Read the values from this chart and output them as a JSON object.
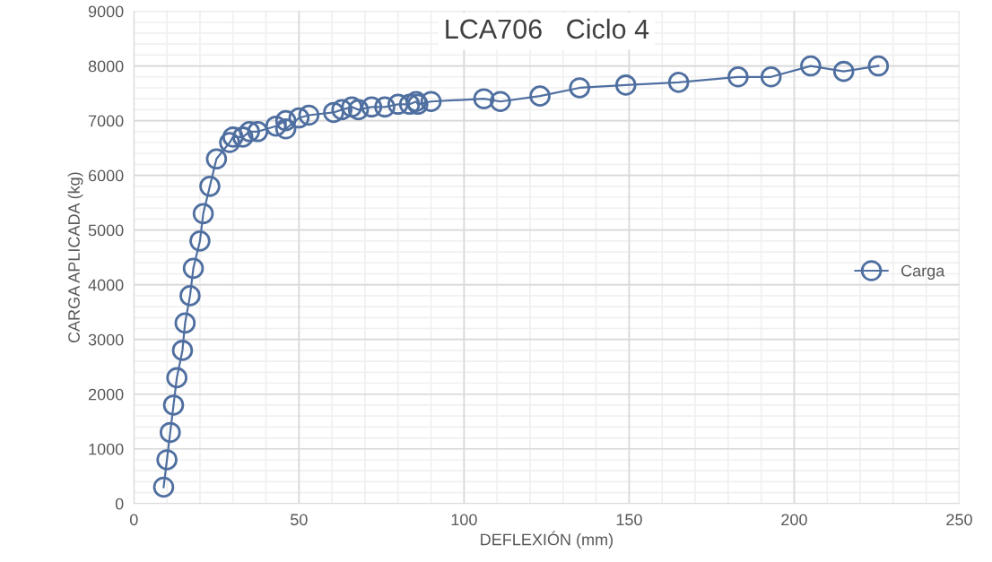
{
  "chart_data": {
    "type": "line",
    "title": "LCA706   Ciclo 4",
    "xlabel": "DEFLEXIÓN (mm)",
    "ylabel": "CARGA APLICADA (kg)",
    "xlim": [
      0,
      250
    ],
    "xticks": [
      0,
      50,
      100,
      150,
      200,
      250
    ],
    "ylim": [
      0,
      9000
    ],
    "yticks": [
      0,
      1000,
      2000,
      3000,
      4000,
      5000,
      6000,
      7000,
      8000,
      9000
    ],
    "grid": true,
    "legend": "right",
    "marker": "circle",
    "line_style": "solid",
    "series": [
      {
        "name": "Carga",
        "color": "#4f6fa0",
        "x": [
          9,
          10,
          11,
          12,
          13,
          14.7,
          15.5,
          17,
          18,
          20,
          21,
          23,
          25,
          29,
          30,
          33,
          35,
          37.5,
          43,
          46,
          46,
          50,
          53,
          60.5,
          63,
          66,
          68,
          72,
          76,
          80,
          83.5,
          85.5,
          86,
          90,
          106,
          111,
          123,
          135,
          149,
          165,
          183,
          193,
          205,
          215,
          225.5
        ],
        "values": [
          300,
          800,
          1300,
          1800,
          2300,
          2800,
          3300,
          3800,
          4300,
          4800,
          5300,
          5800,
          6300,
          6600,
          6700,
          6700,
          6800,
          6800,
          6900,
          7000,
          6850,
          7050,
          7100,
          7150,
          7200,
          7250,
          7200,
          7250,
          7250,
          7300,
          7300,
          7350,
          7300,
          7350,
          7400,
          7350,
          7450,
          7600,
          7650,
          7700,
          7800,
          7800,
          8000,
          7900,
          8000
        ]
      }
    ]
  }
}
